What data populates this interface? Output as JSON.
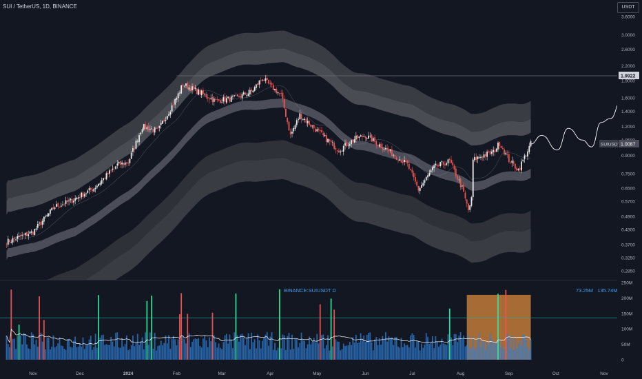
{
  "header": {
    "title": "SUI / TetherUS, 1D, BINANCE",
    "currency": "USDT"
  },
  "chart_data": {
    "type": "candlestick",
    "symbol": "SUIUSDT",
    "exchange": "BINANCE",
    "timeframe": "1D",
    "y_scale": "log",
    "price_ticks": [
      "3.6000",
      "3.0000",
      "2.6000",
      "2.2000",
      "1.9000",
      "1.6000",
      "1.4000",
      "1.2000",
      "1.0500",
      "0.9000",
      "0.7500",
      "0.6500",
      "0.5700",
      "0.4900",
      "0.4300",
      "0.3700",
      "0.3250",
      "0.2850"
    ],
    "x_ticks": [
      "Nov",
      "Dec",
      "2024",
      "Feb",
      "Mar",
      "Apr",
      "May",
      "Jun",
      "Jul",
      "Aug",
      "Sep",
      "Oct",
      "Nov"
    ],
    "resistance_level": {
      "label": "1.9922",
      "value": 1.9922
    },
    "last_price": {
      "symbol_label": "SUIUSDT",
      "value_label": "1.0087",
      "value": 1.0087
    },
    "price_path": [
      [
        "2023-10-15",
        0.38
      ],
      [
        "2023-11-01",
        0.42
      ],
      [
        "2023-11-15",
        0.54
      ],
      [
        "2023-11-25",
        0.57
      ],
      [
        "2023-12-10",
        0.65
      ],
      [
        "2023-12-25",
        0.82
      ],
      [
        "2024-01-01",
        0.84
      ],
      [
        "2024-01-10",
        1.2
      ],
      [
        "2024-01-20",
        1.15
      ],
      [
        "2024-02-01",
        1.6
      ],
      [
        "2024-02-05",
        1.83
      ],
      [
        "2024-02-15",
        1.7
      ],
      [
        "2024-02-26",
        1.55
      ],
      [
        "2024-03-10",
        1.6
      ],
      [
        "2024-03-20",
        1.7
      ],
      [
        "2024-03-27",
        1.95
      ],
      [
        "2024-04-01",
        1.8
      ],
      [
        "2024-04-08",
        1.65
      ],
      [
        "2024-04-14",
        1.1
      ],
      [
        "2024-04-20",
        1.35
      ],
      [
        "2024-05-01",
        1.15
      ],
      [
        "2024-05-15",
        0.95
      ],
      [
        "2024-05-25",
        1.06
      ],
      [
        "2024-06-01",
        1.1
      ],
      [
        "2024-06-10",
        1.0
      ],
      [
        "2024-06-20",
        0.9
      ],
      [
        "2024-06-28",
        0.82
      ],
      [
        "2024-07-05",
        0.64
      ],
      [
        "2024-07-15",
        0.8
      ],
      [
        "2024-07-25",
        0.85
      ],
      [
        "2024-08-02",
        0.65
      ],
      [
        "2024-08-06",
        0.52
      ],
      [
        "2024-08-08",
        0.58
      ],
      [
        "2024-08-09",
        0.86
      ],
      [
        "2024-08-15",
        0.9
      ],
      [
        "2024-08-22",
        0.93
      ],
      [
        "2024-08-26",
        1.02
      ],
      [
        "2024-09-01",
        0.86
      ],
      [
        "2024-09-07",
        0.78
      ],
      [
        "2024-09-15",
        1.0087
      ]
    ],
    "projection_path": [
      [
        "2024-09-15",
        1.0087
      ],
      [
        "2024-09-22",
        1.1
      ],
      [
        "2024-10-02",
        0.95
      ],
      [
        "2024-10-09",
        1.18
      ],
      [
        "2024-10-18",
        1.05
      ],
      [
        "2024-10-24",
        0.98
      ],
      [
        "2024-10-30",
        1.25
      ],
      [
        "2024-11-05",
        1.3
      ],
      [
        "2024-11-12",
        1.55
      ],
      [
        "2024-11-20",
        2.1
      ]
    ],
    "volume": {
      "label": "BINANCE:SUIUSDT D",
      "ticks": [
        "250M",
        "200M",
        "150M",
        "100M",
        "50M",
        "0"
      ],
      "readout_1": "73.25M",
      "readout_2": "135.74M",
      "highlight_range": [
        "2024-08-05",
        "2024-09-15"
      ]
    }
  }
}
